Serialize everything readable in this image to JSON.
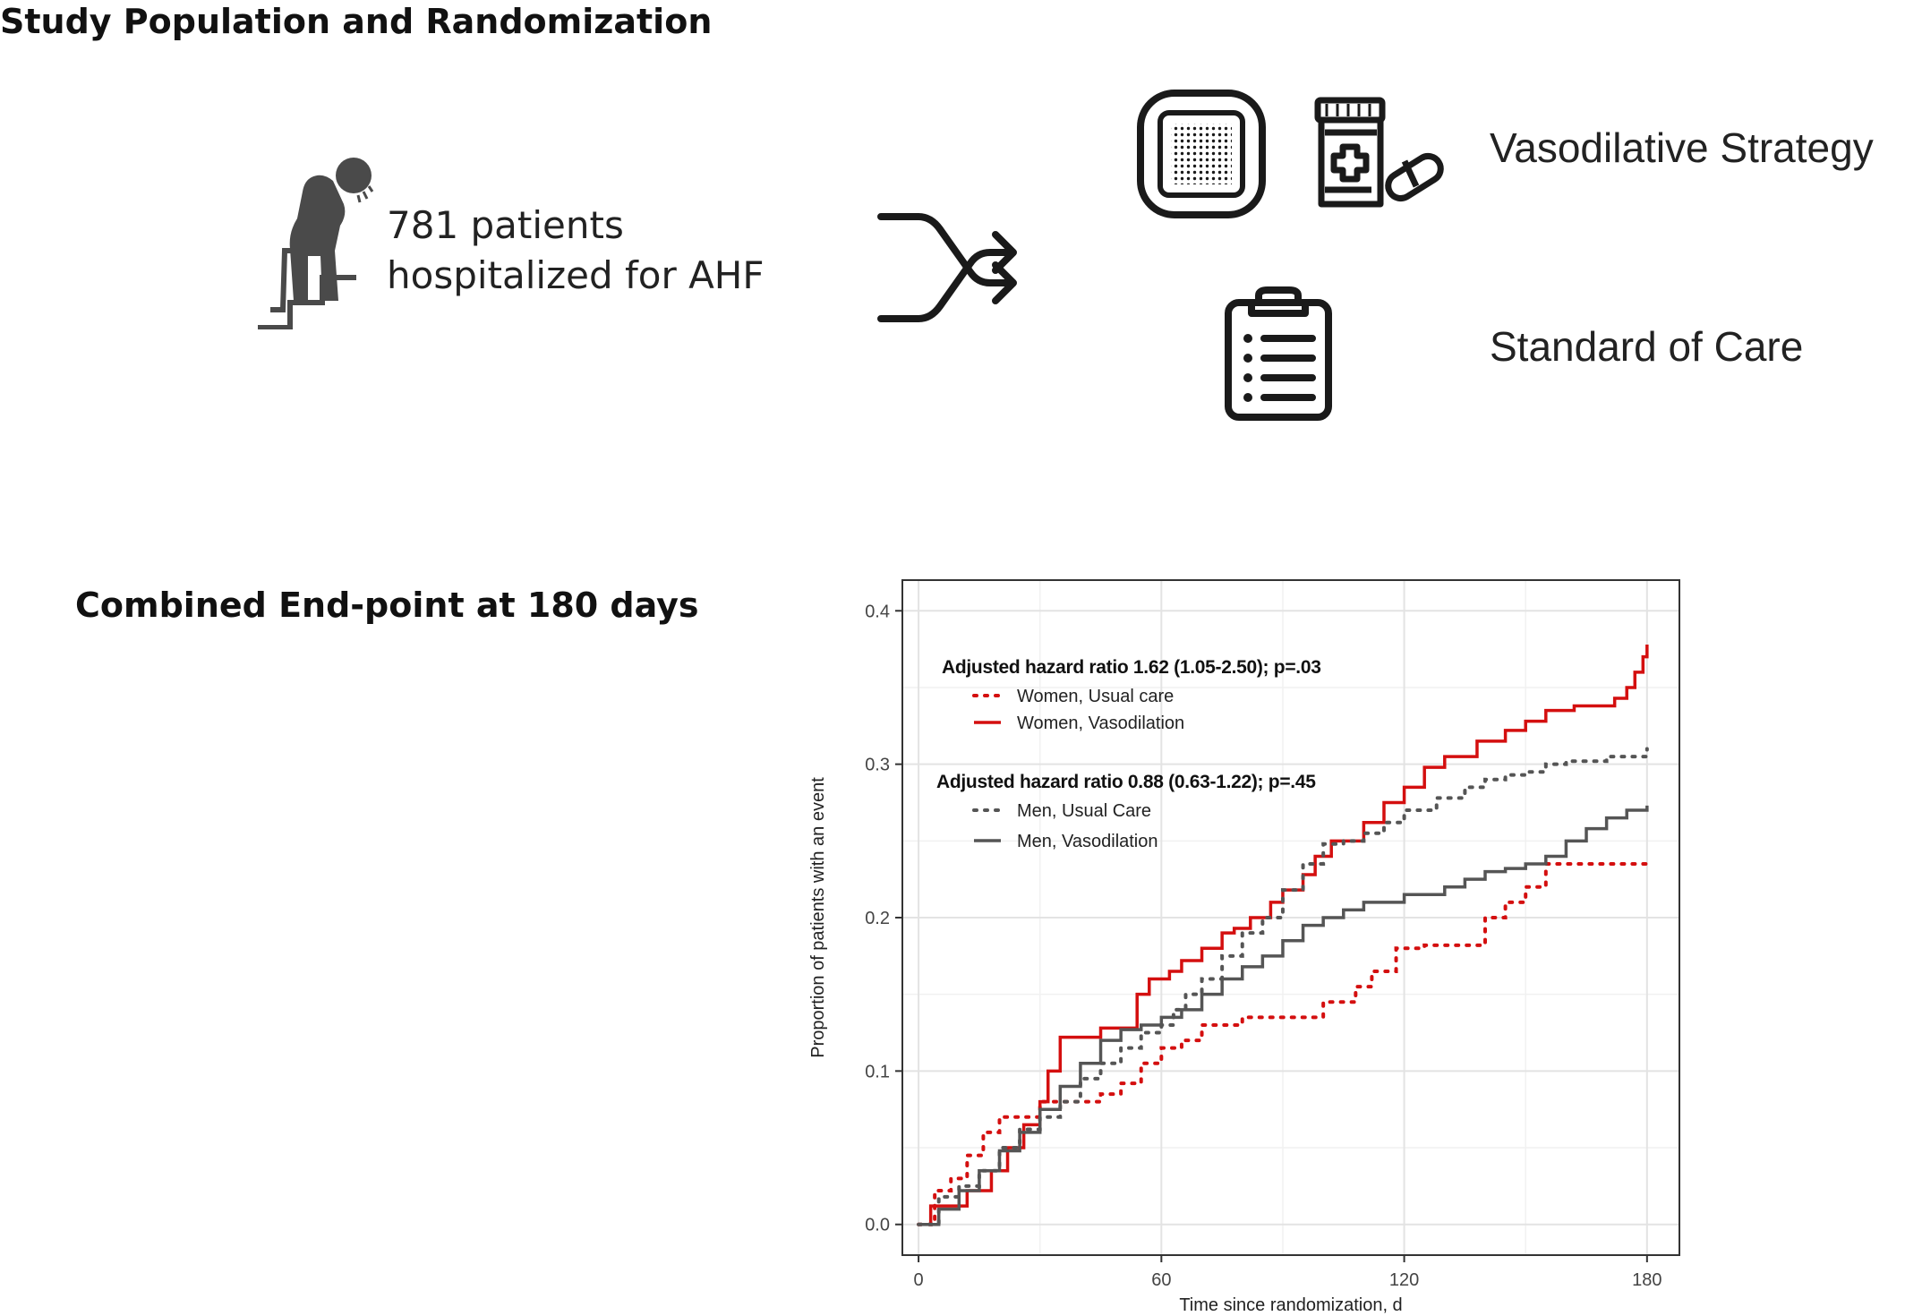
{
  "top_section": {
    "title": "Study Population and Randomization",
    "patients_line1": "781 patients",
    "patients_line2": "hospitalized for AHF",
    "arm_vasodilative": "Vasodilative Strategy",
    "arm_standard": "Standard of Care"
  },
  "bottom_section": {
    "title": "Combined End-point at 180 days"
  },
  "icons": [
    "patient-stairs-icon",
    "shuffle-randomize-icon",
    "patch-icon",
    "pill-bottle-icon",
    "clipboard-icon"
  ],
  "colors": {
    "women": "#d40f0f",
    "men": "#555555",
    "icon": "#4a4a4a"
  },
  "chart_data": {
    "type": "line",
    "subtype": "kaplan-meier cumulative incidence (step)",
    "xlabel": "Time since randomization, d",
    "ylabel": "Proportion of patients with an event",
    "xlim": [
      -4,
      188
    ],
    "ylim": [
      -0.02,
      0.42
    ],
    "xticks": [
      0,
      60,
      120,
      180
    ],
    "yticks": [
      0.0,
      0.1,
      0.2,
      0.3,
      0.4
    ],
    "ytick_labels": [
      "0.0",
      "0.1",
      "0.2",
      "0.3",
      "0.4"
    ],
    "grid": true,
    "legend_groups": [
      {
        "header": "Adjusted hazard ratio 1.62 (1.05-2.50); p=.03",
        "entries": [
          0,
          1
        ]
      },
      {
        "header": "Adjusted hazard ratio 0.88 (0.63-1.22); p=.45",
        "entries": [
          2,
          3
        ]
      }
    ],
    "series": [
      {
        "name": "Women, Usual care",
        "color": "#d40f0f",
        "dash": "dotted",
        "x": [
          0,
          4,
          8,
          12,
          16,
          20,
          30,
          45,
          50,
          55,
          60,
          65,
          70,
          80,
          100,
          108,
          112,
          118,
          125,
          140,
          145,
          150,
          155,
          180
        ],
        "y": [
          0,
          0.022,
          0.03,
          0.045,
          0.06,
          0.07,
          0.08,
          0.085,
          0.092,
          0.105,
          0.115,
          0.12,
          0.13,
          0.135,
          0.145,
          0.155,
          0.165,
          0.18,
          0.182,
          0.2,
          0.21,
          0.22,
          0.235,
          0.237
        ]
      },
      {
        "name": "Women, Vasodilation",
        "color": "#d40f0f",
        "dash": "solid",
        "x": [
          0,
          3,
          12,
          18,
          22,
          26,
          30,
          32,
          35,
          45,
          54,
          57,
          62,
          65,
          70,
          75,
          78,
          82,
          87,
          90,
          95,
          98,
          102,
          110,
          115,
          120,
          125,
          130,
          138,
          145,
          150,
          155,
          162,
          172,
          175,
          177,
          179,
          180
        ],
        "y": [
          0,
          0.012,
          0.022,
          0.035,
          0.05,
          0.065,
          0.08,
          0.1,
          0.122,
          0.128,
          0.15,
          0.16,
          0.165,
          0.172,
          0.18,
          0.19,
          0.193,
          0.2,
          0.21,
          0.218,
          0.228,
          0.24,
          0.25,
          0.262,
          0.275,
          0.285,
          0.298,
          0.305,
          0.315,
          0.322,
          0.328,
          0.335,
          0.338,
          0.343,
          0.35,
          0.36,
          0.37,
          0.378
        ]
      },
      {
        "name": "Men, Usual Care",
        "color": "#555555",
        "dash": "dotted",
        "x": [
          0,
          5,
          10,
          15,
          20,
          25,
          30,
          35,
          40,
          45,
          50,
          55,
          60,
          63,
          66,
          70,
          75,
          80,
          85,
          90,
          95,
          100,
          105,
          110,
          115,
          120,
          128,
          135,
          140,
          145,
          150,
          155,
          160,
          170,
          180
        ],
        "y": [
          0,
          0.018,
          0.025,
          0.035,
          0.05,
          0.062,
          0.07,
          0.08,
          0.095,
          0.105,
          0.115,
          0.125,
          0.13,
          0.14,
          0.15,
          0.16,
          0.175,
          0.19,
          0.2,
          0.218,
          0.235,
          0.248,
          0.25,
          0.255,
          0.262,
          0.27,
          0.278,
          0.285,
          0.29,
          0.293,
          0.295,
          0.3,
          0.302,
          0.305,
          0.31
        ]
      },
      {
        "name": "Men, Vasodilation",
        "color": "#555555",
        "dash": "solid",
        "x": [
          0,
          5,
          10,
          15,
          20,
          25,
          30,
          35,
          40,
          45,
          50,
          55,
          60,
          65,
          70,
          75,
          80,
          85,
          90,
          95,
          100,
          105,
          110,
          120,
          130,
          135,
          140,
          145,
          150,
          155,
          160,
          165,
          170,
          175,
          180
        ],
        "y": [
          0,
          0.01,
          0.022,
          0.035,
          0.048,
          0.06,
          0.075,
          0.09,
          0.105,
          0.12,
          0.127,
          0.13,
          0.135,
          0.14,
          0.15,
          0.16,
          0.168,
          0.175,
          0.185,
          0.195,
          0.2,
          0.205,
          0.21,
          0.215,
          0.22,
          0.225,
          0.23,
          0.232,
          0.235,
          0.24,
          0.25,
          0.258,
          0.265,
          0.27,
          0.273
        ]
      }
    ]
  }
}
